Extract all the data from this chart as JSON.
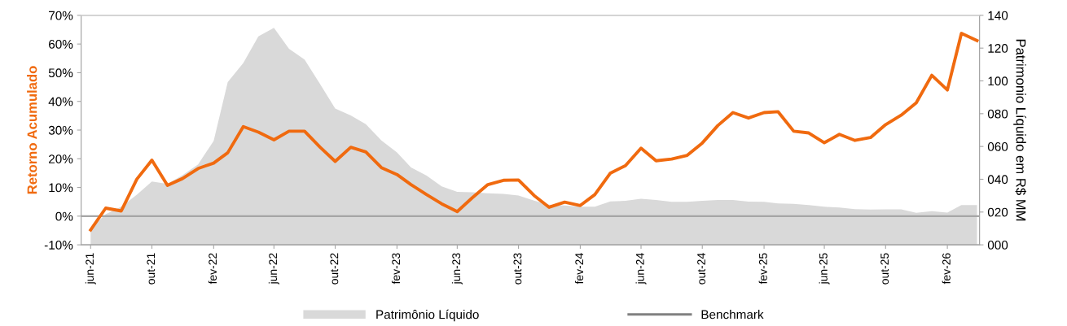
{
  "chart_data": {
    "type": "line",
    "ylabel": "Retorno Acumulado",
    "y2label": "Patrimonio Líquido em R$ MM",
    "x": [
      "2021-06",
      "2021-07",
      "2021-08",
      "2021-09",
      "2021-10",
      "2021-11",
      "2021-12",
      "2022-01",
      "2022-02",
      "2022-03",
      "2022-04",
      "2022-05",
      "2022-06",
      "2022-07",
      "2022-08",
      "2022-09",
      "2022-10",
      "2022-11",
      "2022-12",
      "2023-01",
      "2023-02",
      "2023-03",
      "2023-04",
      "2023-05",
      "2023-06",
      "2023-07",
      "2023-08",
      "2023-09",
      "2023-10",
      "2023-11",
      "2023-12",
      "2024-01",
      "2024-02",
      "2024-03",
      "2024-04",
      "2024-05",
      "2024-06",
      "2024-07",
      "2024-08",
      "2024-09",
      "2024-10",
      "2024-11",
      "2024-12",
      "2025-01",
      "2025-02",
      "2025-03",
      "2025-04",
      "2025-05",
      "2025-06",
      "2025-07",
      "2025-08",
      "2025-09",
      "2025-10",
      "2025-11",
      "2025-12",
      "2026-01",
      "2026-02",
      "2026-03",
      "2026-04"
    ],
    "series": [
      {
        "name": "Patrimônio Líquido",
        "type": "area",
        "axis": "y2",
        "color": "#d9d9d9",
        "values": [
          10,
          18.7,
          23.2,
          30.6,
          38.6,
          37.2,
          42.5,
          49.1,
          63.4,
          99.3,
          110.9,
          127.1,
          132.4,
          119.6,
          113.0,
          98.0,
          83.1,
          78.9,
          73.6,
          63.7,
          56.3,
          47.2,
          42.2,
          35.6,
          32.3,
          32.0,
          31.5,
          31.1,
          30.1,
          27.0,
          24.5,
          24.0,
          23.2,
          23.2,
          26.5,
          26.8,
          28.1,
          27.3,
          26.2,
          26.2,
          26.8,
          27.3,
          27.4,
          26.3,
          26.2,
          25.3,
          25.0,
          24.2,
          23.2,
          22.8,
          21.8,
          21.5,
          21.6,
          21.6,
          19.6,
          20.5,
          19.7,
          24.3,
          24.3
        ]
      },
      {
        "name": "Benchmark",
        "type": "line",
        "color": "#808080",
        "values": [
          null,
          null,
          null,
          null,
          null,
          null,
          null,
          null,
          null,
          null,
          null,
          null,
          null,
          null,
          null,
          null,
          null,
          null,
          null,
          null,
          null,
          null,
          null,
          null,
          null,
          null,
          null,
          null,
          null,
          null,
          null,
          null,
          null,
          null,
          null,
          null,
          null,
          null,
          null,
          null,
          null,
          null,
          null,
          null,
          null,
          null,
          null,
          null,
          null,
          null,
          null,
          null,
          null,
          null,
          null,
          null,
          null,
          null,
          null
        ]
      },
      {
        "color": "#f06a0f",
        "values": [
          -4.8,
          2.8,
          1.8,
          12.9,
          19.5,
          10.7,
          13.1,
          16.6,
          18.5,
          22.1,
          31.2,
          29.3,
          26.6,
          29.6,
          29.6,
          24.0,
          19.1,
          24.0,
          22.4,
          16.9,
          14.5,
          11.0,
          7.5,
          4.3,
          1.6,
          6.4,
          11.0,
          12.5,
          12.6,
          7.2,
          3.1,
          4.9,
          3.7,
          7.5,
          15.0,
          17.6,
          23.7,
          19.3,
          19.9,
          21.2,
          25.5,
          31.6,
          36.1,
          34.2,
          36.1,
          36.4,
          29.6,
          29.0,
          25.6,
          28.5,
          26.4,
          27.4,
          31.9,
          35.2,
          39.5,
          49.1,
          44.0,
          63.7,
          61.2
        ]
      }
    ],
    "xlim": [
      "2021-05-13",
      "2026-04-06"
    ],
    "xticks": [
      {
        "value": "2021-06",
        "label": "jun-21"
      },
      {
        "value": "2021-10",
        "label": "out-21"
      },
      {
        "value": "2022-02",
        "label": "fev-22"
      },
      {
        "value": "2022-06",
        "label": "jun-22"
      },
      {
        "value": "2022-10",
        "label": "out-22"
      },
      {
        "value": "2023-02",
        "label": "fev-23"
      },
      {
        "value": "2023-06",
        "label": "jun-23"
      },
      {
        "value": "2023-10",
        "label": "out-23"
      },
      {
        "value": "2024-02",
        "label": "fev-24"
      },
      {
        "value": "2024-06",
        "label": "jun-24"
      },
      {
        "value": "2024-10",
        "label": "out-24"
      },
      {
        "value": "2025-02",
        "label": "fev-25"
      },
      {
        "value": "2025-06",
        "label": "jun-25"
      },
      {
        "value": "2025-10",
        "label": "out-25"
      },
      {
        "value": "2026-02",
        "label": "fev-26"
      }
    ],
    "ylim": [
      -10,
      70
    ],
    "yticks": [
      {
        "value": -10,
        "label": "-10%"
      },
      {
        "value": 0,
        "label": "0%"
      },
      {
        "value": 10,
        "label": "10%"
      },
      {
        "value": 20,
        "label": "20%"
      },
      {
        "value": 30,
        "label": "30%"
      },
      {
        "value": 40,
        "label": "40%"
      },
      {
        "value": 50,
        "label": "50%"
      },
      {
        "value": 60,
        "label": "60%"
      },
      {
        "value": 70,
        "label": "70%"
      }
    ],
    "y2lim": [
      0,
      140
    ],
    "y2ticks": [
      {
        "value": 0,
        "label": "000"
      },
      {
        "value": 20,
        "label": "020"
      },
      {
        "value": 40,
        "label": "040"
      },
      {
        "value": 60,
        "label": "060"
      },
      {
        "value": 80,
        "label": "080"
      },
      {
        "value": 100,
        "label": "100"
      },
      {
        "value": 120,
        "label": "120"
      },
      {
        "value": 140,
        "label": "140"
      }
    ],
    "ref_lines": [
      {
        "axis": "y",
        "value": 0,
        "color": "#a6a6a6"
      }
    ],
    "legend": "bottom",
    "grid": false
  }
}
